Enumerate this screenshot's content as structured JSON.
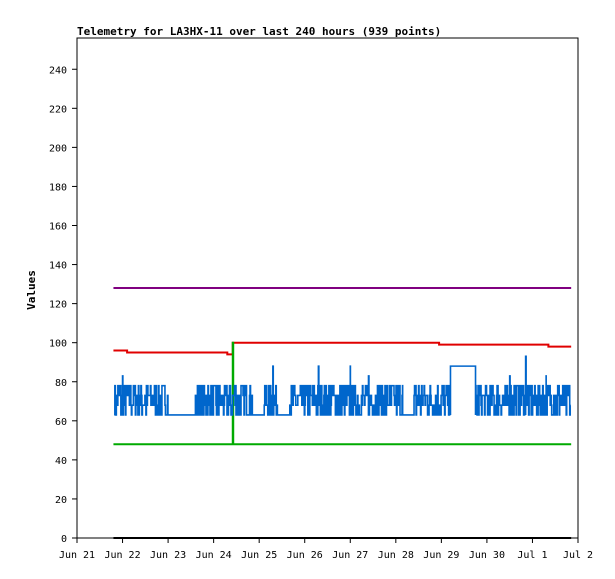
{
  "chart_data": {
    "type": "line",
    "title": "Telemetry for LA3HX-11 over last 240 hours (939 points)",
    "xlabel": "",
    "ylabel": "Values",
    "xlim": [
      0,
      11
    ],
    "ylim": [
      0,
      256
    ],
    "x_ticks": [
      {
        "x": 0,
        "label": "Jun 21"
      },
      {
        "x": 1,
        "label": "Jun 22"
      },
      {
        "x": 2,
        "label": "Jun 23"
      },
      {
        "x": 3,
        "label": "Jun 24"
      },
      {
        "x": 4,
        "label": "Jun 25"
      },
      {
        "x": 5,
        "label": "Jun 26"
      },
      {
        "x": 6,
        "label": "Jun 27"
      },
      {
        "x": 7,
        "label": "Jun 28"
      },
      {
        "x": 8,
        "label": "Jun 29"
      },
      {
        "x": 9,
        "label": "Jun 30"
      },
      {
        "x": 10,
        "label": "Jul 1"
      },
      {
        "x": 11,
        "label": "Jul 2"
      }
    ],
    "y_ticks": [
      0,
      20,
      40,
      60,
      80,
      100,
      120,
      140,
      160,
      180,
      200,
      220,
      240
    ],
    "grid": false,
    "series": [
      {
        "color": "#800080",
        "style": "step",
        "points": [
          [
            0.8,
            128
          ],
          [
            10.85,
            128
          ]
        ]
      },
      {
        "color": "#e00000",
        "style": "step",
        "points": [
          [
            0.8,
            96
          ],
          [
            1.1,
            95
          ],
          [
            3.3,
            94
          ],
          [
            3.42,
            100
          ],
          [
            7.95,
            99
          ],
          [
            10.35,
            98
          ],
          [
            10.85,
            98
          ]
        ]
      },
      {
        "color": "#00aa00",
        "style": "step",
        "points": [
          [
            0.8,
            48
          ],
          [
            3.42,
            48
          ],
          [
            3.42,
            100
          ],
          [
            3.43,
            48
          ],
          [
            10.85,
            48
          ]
        ]
      },
      {
        "color": "#000000",
        "style": "step",
        "points": [
          [
            0.8,
            0
          ],
          [
            10.85,
            0
          ]
        ]
      },
      {
        "color": "#0066cc",
        "style": "noise",
        "base": 63,
        "levels": [
          63,
          68,
          73,
          78
        ],
        "spikes": [
          [
            1.0,
            83
          ],
          [
            4.3,
            88
          ],
          [
            5.3,
            88
          ],
          [
            6.0,
            88
          ],
          [
            6.4,
            83
          ],
          [
            8.2,
            88
          ],
          [
            9.5,
            83
          ],
          [
            9.85,
            93
          ],
          [
            10.3,
            83
          ]
        ],
        "segments": [
          {
            "from": 0.82,
            "to": 2.0,
            "mode": "active"
          },
          {
            "from": 2.0,
            "to": 2.6,
            "mode": "flat"
          },
          {
            "from": 2.6,
            "to": 3.85,
            "mode": "active"
          },
          {
            "from": 3.85,
            "to": 4.1,
            "mode": "flat"
          },
          {
            "from": 4.1,
            "to": 4.4,
            "mode": "active"
          },
          {
            "from": 4.4,
            "to": 4.65,
            "mode": "flat"
          },
          {
            "from": 4.65,
            "to": 7.15,
            "mode": "active"
          },
          {
            "from": 7.15,
            "to": 7.4,
            "mode": "flat"
          },
          {
            "from": 7.4,
            "to": 8.2,
            "mode": "active"
          },
          {
            "from": 8.2,
            "to": 8.75,
            "mode": "flat"
          },
          {
            "from": 8.75,
            "to": 10.85,
            "mode": "active"
          }
        ]
      }
    ]
  }
}
